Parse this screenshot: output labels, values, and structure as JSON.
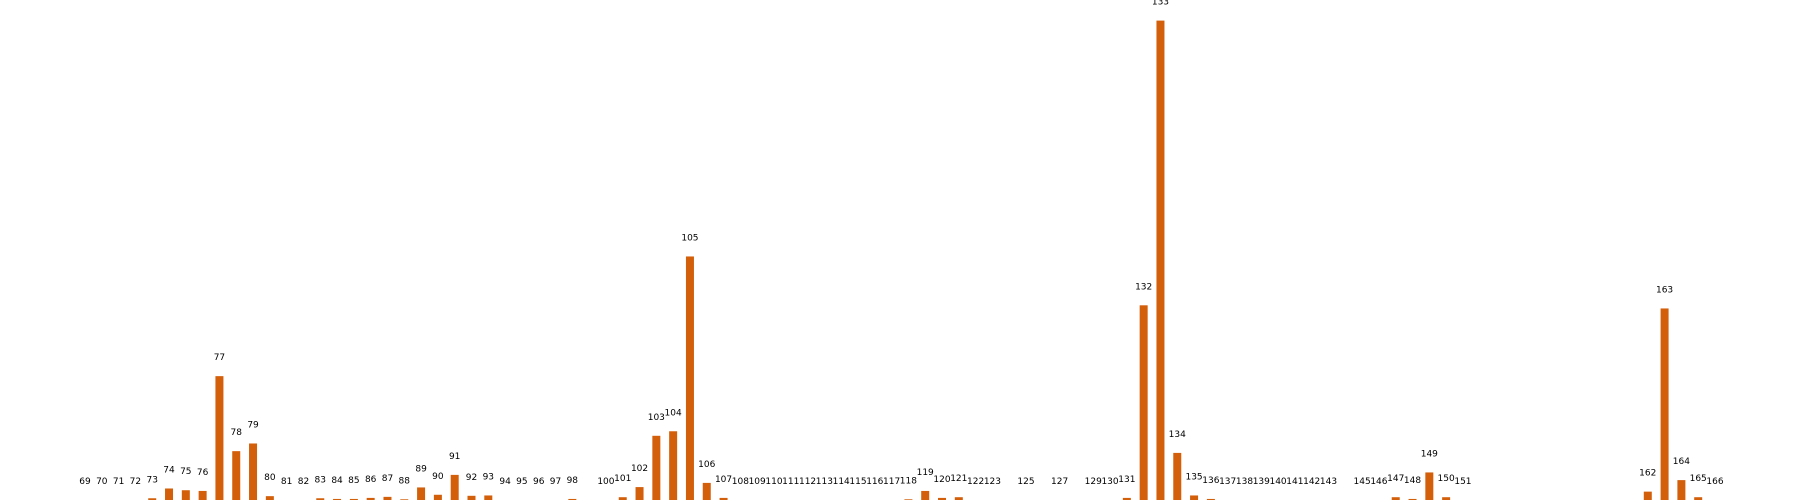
{
  "chart_data": {
    "type": "bar",
    "title": "",
    "xlabel": "",
    "ylabel": "",
    "bar_color": "#d35f0b",
    "grid": false,
    "ylim": [
      0,
      137
    ],
    "categories": [
      "69",
      "70",
      "71",
      "72",
      "73",
      "74",
      "75",
      "76",
      "77",
      "78",
      "79",
      "80",
      "81",
      "82",
      "83",
      "84",
      "85",
      "86",
      "87",
      "88",
      "89",
      "90",
      "91",
      "92",
      "93",
      "94",
      "95",
      "96",
      "97",
      "98",
      "100",
      "101",
      "102",
      "103",
      "104",
      "105",
      "106",
      "107",
      "108",
      "109",
      "110",
      "111",
      "112",
      "113",
      "114",
      "115",
      "116",
      "117",
      "118",
      "119",
      "120",
      "121",
      "122",
      "123",
      "125",
      "127",
      "129",
      "130",
      "131",
      "132",
      "133",
      "134",
      "135",
      "136",
      "137",
      "138",
      "139",
      "140",
      "141",
      "142",
      "143",
      "145",
      "146",
      "147",
      "148",
      "149",
      "150",
      "151",
      "162",
      "163",
      "164",
      "165",
      "166"
    ],
    "x": [
      69,
      70,
      71,
      72,
      73,
      74,
      75,
      76,
      77,
      78,
      79,
      80,
      81,
      82,
      83,
      84,
      85,
      86,
      87,
      88,
      89,
      90,
      91,
      92,
      93,
      94,
      95,
      96,
      97,
      98,
      100,
      101,
      102,
      103,
      104,
      105,
      106,
      107,
      108,
      109,
      110,
      111,
      112,
      113,
      114,
      115,
      116,
      117,
      118,
      119,
      120,
      121,
      122,
      123,
      125,
      127,
      129,
      130,
      131,
      132,
      133,
      134,
      135,
      136,
      137,
      138,
      139,
      140,
      141,
      142,
      143,
      145,
      146,
      147,
      148,
      149,
      150,
      151,
      162,
      163,
      164,
      165,
      166
    ],
    "values": [
      0,
      0,
      0,
      0,
      0.5,
      3.3,
      2.8,
      2.6,
      35.5,
      14,
      16.2,
      1.1,
      0,
      0,
      0.5,
      0.3,
      0.3,
      0.6,
      0.9,
      0.2,
      3.6,
      1.5,
      7.2,
      1.2,
      1.3,
      0,
      0,
      0,
      0,
      0.3,
      0,
      0.8,
      3.7,
      18.4,
      19.7,
      69.8,
      4.9,
      0.6,
      0,
      0,
      0,
      0,
      0,
      0,
      0,
      0,
      0,
      0,
      0.2,
      2.6,
      0.6,
      0.8,
      0,
      0,
      0,
      0,
      0,
      0,
      0.6,
      55.8,
      137.4,
      13.5,
      1.3,
      0.3,
      0,
      0,
      0,
      0,
      0,
      0,
      0,
      0,
      0,
      0.8,
      0.3,
      7.9,
      0.8,
      0,
      2.4,
      54.9,
      5.7,
      0.8,
      0
    ]
  }
}
